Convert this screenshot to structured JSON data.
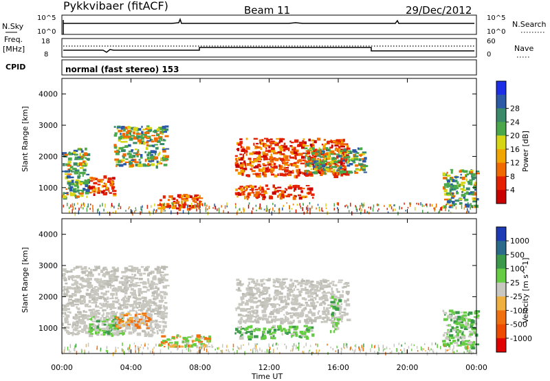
{
  "header": {
    "station": "Pykkvibaer (fitACF)",
    "beam": "Beam 11",
    "date": "29/Dec/2012"
  },
  "params": {
    "nsky_label": "N.Sky",
    "nsearch_label": "N.Search",
    "freq_label_1": "Freq.",
    "freq_label_2": "[MHz]",
    "nave_label": "Nave",
    "cpid_label": "CPID",
    "cpid_value": "normal (fast stereo) 153",
    "noise_tick_top": "10^5",
    "noise_tick_bottom": "10^0",
    "freq_tick_top": "18",
    "freq_tick_bottom": "8",
    "nave_tick_top": "60",
    "nave_tick_bottom": "0"
  },
  "chart_data": [
    {
      "type": "heatmap",
      "panel": "power",
      "ylabel": "Slant Range [km]",
      "ylim": [
        180,
        4500
      ],
      "yticks": [
        1000,
        2000,
        3000,
        4000
      ],
      "colorbar_label": "Power [dB]",
      "colorbar_ticks": [
        "4",
        "8",
        "12",
        "16",
        "20",
        "24",
        "28"
      ],
      "colorbar_colors": [
        "#1c2ee6",
        "#2c5aa6",
        "#3a8a6a",
        "#4aa84a",
        "#d6d614",
        "#f0a500",
        "#f06a00",
        "#e52000",
        "#c80000"
      ],
      "echo_regions": [
        {
          "x": [
            0.0,
            1.5
          ],
          "y": [
            700,
            2300
          ],
          "level": "mixed"
        },
        {
          "x": [
            1.5,
            3.0
          ],
          "y": [
            800,
            1400
          ],
          "level": "strong"
        },
        {
          "x": [
            3.0,
            6.0
          ],
          "y": [
            1700,
            3000
          ],
          "level": "mixed"
        },
        {
          "x": [
            5.5,
            8.0
          ],
          "y": [
            350,
            800
          ],
          "level": "strong"
        },
        {
          "x": [
            10.0,
            16.5
          ],
          "y": [
            1400,
            2600
          ],
          "level": "strong"
        },
        {
          "x": [
            10.0,
            14.5
          ],
          "y": [
            700,
            1100
          ],
          "level": "strong"
        },
        {
          "x": [
            14.0,
            17.5
          ],
          "y": [
            1500,
            2300
          ],
          "level": "mixed"
        },
        {
          "x": [
            22.0,
            24.0
          ],
          "y": [
            400,
            1600
          ],
          "level": "mixed"
        }
      ]
    },
    {
      "type": "heatmap",
      "panel": "velocity",
      "xlabel": "Time UT",
      "ylabel": "Slant Range [km]",
      "ylim": [
        180,
        4500
      ],
      "yticks": [
        1000,
        2000,
        3000,
        4000
      ],
      "xticks": [
        "00:00",
        "04:00",
        "08:00",
        "12:00",
        "16:00",
        "20:00",
        "00:00"
      ],
      "colorbar_label": "Velocity [m s^-1]",
      "colorbar_ticks": [
        "1000",
        "500",
        "100",
        "25",
        "-25",
        "-100",
        "-500",
        "-1000"
      ],
      "colorbar_colors": [
        "#1c3ab4",
        "#2a6a8a",
        "#3a9a4a",
        "#66cc44",
        "#c8c8c0",
        "#f0b040",
        "#f07010",
        "#ee4a00",
        "#e00000"
      ],
      "echo_regions": [
        {
          "x": [
            0.0,
            6.0
          ],
          "y": [
            800,
            3000
          ],
          "level": "ground"
        },
        {
          "x": [
            1.5,
            3.5
          ],
          "y": [
            800,
            1400
          ],
          "level": "positive"
        },
        {
          "x": [
            3.0,
            5.0
          ],
          "y": [
            1000,
            1500
          ],
          "level": "negative"
        },
        {
          "x": [
            5.5,
            8.5
          ],
          "y": [
            400,
            800
          ],
          "level": "mixed"
        },
        {
          "x": [
            10.0,
            16.5
          ],
          "y": [
            1200,
            2600
          ],
          "level": "ground"
        },
        {
          "x": [
            10.0,
            14.5
          ],
          "y": [
            700,
            1100
          ],
          "level": "positive"
        },
        {
          "x": [
            15.5,
            16.0
          ],
          "y": [
            900,
            2100
          ],
          "level": "positive"
        },
        {
          "x": [
            22.0,
            24.0
          ],
          "y": [
            400,
            1600
          ],
          "level": "positive"
        }
      ]
    }
  ]
}
